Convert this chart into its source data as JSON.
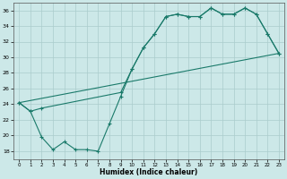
{
  "xlabel": "Humidex (Indice chaleur)",
  "bg_color": "#cce8e8",
  "grid_color": "#aacccc",
  "line_color": "#1a7a6a",
  "xlim": [
    -0.5,
    23.5
  ],
  "ylim": [
    17.0,
    37.0
  ],
  "xticks": [
    0,
    1,
    2,
    3,
    4,
    5,
    6,
    7,
    8,
    9,
    10,
    11,
    12,
    13,
    14,
    15,
    16,
    17,
    18,
    19,
    20,
    21,
    22,
    23
  ],
  "yticks": [
    18,
    20,
    22,
    24,
    26,
    28,
    30,
    32,
    34,
    36
  ],
  "curve1_x": [
    0,
    1,
    2,
    3,
    4,
    5,
    6,
    7,
    8,
    9,
    10,
    11,
    12,
    13,
    14,
    15,
    16,
    17,
    18,
    19,
    20,
    21,
    22,
    23
  ],
  "curve1_y": [
    24.2,
    23.1,
    19.8,
    18.2,
    19.2,
    18.2,
    18.2,
    18.0,
    21.5,
    25.0,
    28.5,
    31.2,
    33.0,
    35.2,
    35.5,
    35.2,
    35.2,
    36.3,
    35.5,
    35.5,
    36.3,
    35.5,
    33.0,
    30.5
  ],
  "curve2_x": [
    0,
    1,
    2,
    9,
    10,
    11,
    12,
    13,
    14,
    15,
    16,
    17,
    18,
    19,
    20,
    21,
    22,
    23
  ],
  "curve2_y": [
    24.2,
    23.1,
    23.5,
    25.5,
    28.5,
    31.2,
    33.0,
    35.2,
    35.5,
    35.2,
    35.2,
    36.3,
    35.5,
    35.5,
    36.3,
    35.5,
    33.0,
    30.5
  ],
  "line3_x": [
    0,
    23
  ],
  "line3_y": [
    24.2,
    30.5
  ]
}
